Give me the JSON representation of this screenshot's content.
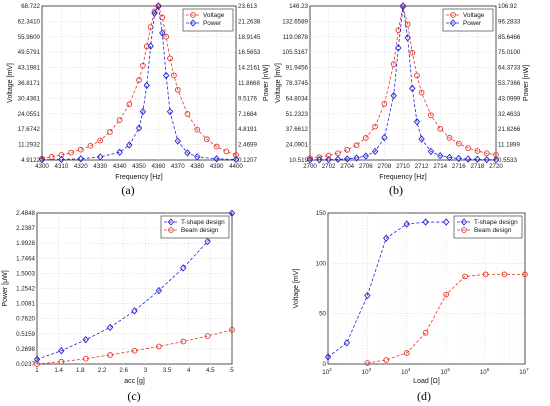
{
  "chart_data": [
    {
      "panel_label": "(a)",
      "type": "line",
      "xlabel": "Frequency [Hz]",
      "ylabel": "Voltage [mV]",
      "ylabel_right": "Power [nW]",
      "xlim": [
        4300,
        4400
      ],
      "ylim": [
        4.9122,
        68.722
      ],
      "ylim_right": [
        0.1207,
        23.613
      ],
      "x_ticks": [
        "4300",
        "4310",
        "4320",
        "4330",
        "4340",
        "4350",
        "4360",
        "4370",
        "4380",
        "4390",
        "4400"
      ],
      "y_ticks": [
        "4.9122",
        "11.2932",
        "17.6742",
        "24.0551",
        "30.4361",
        "36.8171",
        "43.1981",
        "49.5791",
        "55.9600",
        "62.3410",
        "68.722"
      ],
      "y_ticks_right": [
        "0.1207",
        "2.4699",
        "4.8191",
        "7.1684",
        "9.5176",
        "11.8668",
        "14.2161",
        "16.5653",
        "18.9145",
        "21.2638",
        "23.613"
      ],
      "grid": true,
      "legend_position": "top-right",
      "series": [
        {
          "name": "Voltage",
          "axis": "left",
          "color": "#e8362a",
          "marker": "circle",
          "x": [
            4300,
            4305,
            4310,
            4315,
            4320,
            4325,
            4330,
            4335,
            4340,
            4345,
            4350,
            4352,
            4354,
            4356,
            4358,
            4360,
            4362,
            4364,
            4366,
            4368,
            4370,
            4375,
            4380,
            4385,
            4390,
            4395,
            4400
          ],
          "y": [
            5.5,
            6.2,
            7.0,
            8.0,
            9.2,
            10.8,
            13.0,
            16.5,
            21.5,
            28.0,
            38.0,
            44.0,
            52.0,
            60.0,
            66.5,
            68.7,
            64.0,
            56.0,
            47.0,
            40.0,
            34.0,
            24.0,
            17.5,
            13.5,
            10.5,
            8.5,
            7.0
          ]
        },
        {
          "name": "Power",
          "axis": "right",
          "color": "#2323d8",
          "marker": "diamond",
          "x": [
            4300,
            4310,
            4320,
            4330,
            4340,
            4345,
            4350,
            4352,
            4354,
            4356,
            4358,
            4360,
            4362,
            4364,
            4366,
            4370,
            4375,
            4380,
            4390,
            4400
          ],
          "y": [
            0.15,
            0.2,
            0.3,
            0.6,
            1.3,
            2.4,
            5.0,
            7.5,
            11.5,
            17.5,
            22.5,
            23.6,
            19.5,
            13.0,
            7.5,
            3.0,
            1.2,
            0.6,
            0.3,
            0.2
          ]
        }
      ]
    },
    {
      "panel_label": "(b)",
      "type": "line",
      "xlabel": "Frequency [Hz]",
      "ylabel": "Voltage [mV]",
      "ylabel_right": "Power [nW]",
      "xlim": [
        2700,
        2720
      ],
      "ylim": [
        10.519,
        146.23
      ],
      "ylim_right": [
        0.5533,
        106.92
      ],
      "x_ticks": [
        "2700",
        "2702",
        "2704",
        "2706",
        "2708",
        "2710",
        "2712",
        "2714",
        "2716",
        "2718",
        "2720"
      ],
      "y_ticks": [
        "10.519",
        "24.0901",
        "37.6612",
        "51.2323",
        "64.8034",
        "78.3745",
        "91.9456",
        "105.5167",
        "119.0878",
        "132.6589",
        "146.23"
      ],
      "y_ticks_right": [
        "0.5533",
        "11.1899",
        "21.8266",
        "32.4633",
        "43.0999",
        "53.7366",
        "64.3733",
        "75.0100",
        "85.6466",
        "96.2833",
        "106.92"
      ],
      "grid": true,
      "legend_position": "top-right",
      "series": [
        {
          "name": "Voltage",
          "axis": "left",
          "color": "#e8362a",
          "marker": "circle",
          "x": [
            2700,
            2701,
            2702,
            2703,
            2704,
            2705,
            2706,
            2707,
            2708,
            2709,
            2709.5,
            2710,
            2710.5,
            2711,
            2711.5,
            2712,
            2713,
            2714,
            2715,
            2716,
            2717,
            2718,
            2719,
            2720
          ],
          "y": [
            12,
            13,
            14.5,
            16.5,
            19.5,
            23.5,
            30,
            40,
            60,
            95,
            125,
            146,
            130,
            105,
            85,
            70,
            50,
            38,
            30,
            25,
            21,
            18.5,
            16.5,
            15
          ]
        },
        {
          "name": "Power",
          "axis": "right",
          "color": "#2323d8",
          "marker": "diamond",
          "x": [
            2700,
            2701,
            2702,
            2703,
            2704,
            2705,
            2706,
            2707,
            2708,
            2709,
            2709.5,
            2710,
            2710.5,
            2711,
            2711.5,
            2712,
            2713,
            2714,
            2715,
            2716,
            2717,
            2718,
            2719,
            2720
          ],
          "y": [
            0.6,
            0.7,
            0.8,
            1.0,
            1.3,
            2.0,
            3.3,
            6.5,
            16,
            45,
            78,
            106.9,
            85,
            50,
            27,
            15,
            6.5,
            3.5,
            2.3,
            1.6,
            1.2,
            1.0,
            0.8,
            0.7
          ]
        }
      ]
    },
    {
      "panel_label": "(c)",
      "type": "line",
      "xlabel": "acc [g]",
      "ylabel": "Power [μW]",
      "xlim": [
        1,
        5
      ],
      "ylim": [
        0.0237,
        2.4848
      ],
      "x_ticks": [
        "1",
        "1.4",
        "1.8",
        "2.2",
        "2.6",
        "3",
        "3.5",
        "4",
        "4.5",
        "5"
      ],
      "y_ticks": [
        "0.0237",
        "0.2698",
        "0.5159",
        "0.7620",
        "1.0081",
        "1.2542",
        "1.5003",
        "1.7464",
        "1.9928",
        "2.2387",
        "2.4848"
      ],
      "grid": true,
      "legend_position": "top-right",
      "series": [
        {
          "name": "T-shape design",
          "color": "#2323d8",
          "marker": "diamond",
          "x": [
            1,
            1.5,
            2,
            2.5,
            3,
            3.5,
            4,
            4.5,
            5
          ],
          "y": [
            0.1,
            0.24,
            0.42,
            0.62,
            0.89,
            1.22,
            1.59,
            2.02,
            2.48
          ]
        },
        {
          "name": "Beam design",
          "color": "#e8362a",
          "marker": "circle",
          "x": [
            1,
            1.5,
            2,
            2.5,
            3,
            3.5,
            4,
            4.5,
            5
          ],
          "y": [
            0.0237,
            0.06,
            0.11,
            0.17,
            0.24,
            0.31,
            0.39,
            0.48,
            0.58
          ]
        }
      ]
    },
    {
      "panel_label": "(d)",
      "type": "line",
      "xlabel": "Load [Ω]",
      "ylabel": "Voltage [mV]",
      "x_scale": "log",
      "xlim": [
        100,
        10000000
      ],
      "ylim": [
        0,
        150
      ],
      "x_ticks": [
        {
          "base": "10",
          "exp": "2"
        },
        {
          "base": "10",
          "exp": "3"
        },
        {
          "base": "10",
          "exp": "4"
        },
        {
          "base": "10",
          "exp": "5"
        },
        {
          "base": "10",
          "exp": "6"
        },
        {
          "base": "10",
          "exp": "7"
        }
      ],
      "y_ticks": [
        "0",
        "50",
        "100",
        "150"
      ],
      "grid": true,
      "legend_position": "top-right",
      "series": [
        {
          "name": "T-shape design",
          "color": "#2323d8",
          "marker": "diamond",
          "x": [
            100,
            300,
            1000,
            3000,
            10000,
            30000,
            100000
          ],
          "y": [
            7,
            21,
            68,
            125,
            139,
            141,
            141
          ]
        },
        {
          "name": "Beam design",
          "color": "#e8362a",
          "marker": "circle",
          "x": [
            1000,
            3000,
            10000,
            30000,
            100000,
            300000,
            1000000,
            3000000,
            10000000
          ],
          "y": [
            1,
            4,
            11,
            31,
            69,
            87,
            89,
            89,
            89
          ]
        }
      ]
    }
  ]
}
